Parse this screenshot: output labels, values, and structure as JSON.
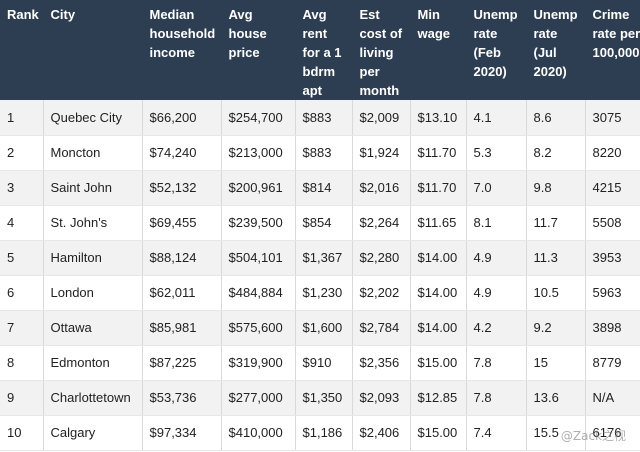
{
  "table": {
    "headers": [
      "Rank",
      "City",
      "Median\nhousehold\nincome",
      "Avg\nhouse\nprice",
      "Avg\nrent\nfor a 1\nbdrm\napt",
      "Est\ncost of\nliving\nper\nmonth",
      "Min\nwage",
      "Unemp\nrate\n(Feb\n2020)",
      "Unemp\nrate\n(Jul\n2020)",
      "Crime\nrate per\n100,000"
    ],
    "rows": [
      [
        "1",
        "Quebec City",
        "$66,200",
        "$254,700",
        "$883",
        "$2,009",
        "$13.10",
        "4.1",
        "8.6",
        "3075"
      ],
      [
        "2",
        "Moncton",
        "$74,240",
        "$213,000",
        "$883",
        "$1,924",
        "$11.70",
        "5.3",
        "8.2",
        "8220"
      ],
      [
        "3",
        "Saint John",
        "$52,132",
        "$200,961",
        "$814",
        "$2,016",
        "$11.70",
        "7.0",
        "9.8",
        "4215"
      ],
      [
        "4",
        "St. John's",
        "$69,455",
        "$239,500",
        "$854",
        "$2,264",
        "$11.65",
        "8.1",
        "11.7",
        "5508"
      ],
      [
        "5",
        "Hamilton",
        "$88,124",
        "$504,101",
        "$1,367",
        "$2,280",
        "$14.00",
        "4.9",
        "11.3",
        "3953"
      ],
      [
        "6",
        "London",
        "$62,011",
        "$484,884",
        "$1,230",
        "$2,202",
        "$14.00",
        "4.9",
        "10.5",
        "5963"
      ],
      [
        "7",
        "Ottawa",
        "$85,981",
        "$575,600",
        "$1,600",
        "$2,784",
        "$14.00",
        "4.2",
        "9.2",
        "3898"
      ],
      [
        "8",
        "Edmonton",
        "$87,225",
        "$319,900",
        "$910",
        "$2,356",
        "$15.00",
        "7.8",
        "15",
        "8779"
      ],
      [
        "9",
        "Charlottetown",
        "$53,736",
        "$277,000",
        "$1,350",
        "$2,093",
        "$12.85",
        "7.8",
        "13.6",
        "N/A"
      ],
      [
        "10",
        "Calgary",
        "$97,334",
        "$410,000",
        "$1,186",
        "$2,406",
        "$15.00",
        "7.4",
        "15.5",
        "6176"
      ]
    ]
  },
  "watermark": "@Zack之视"
}
